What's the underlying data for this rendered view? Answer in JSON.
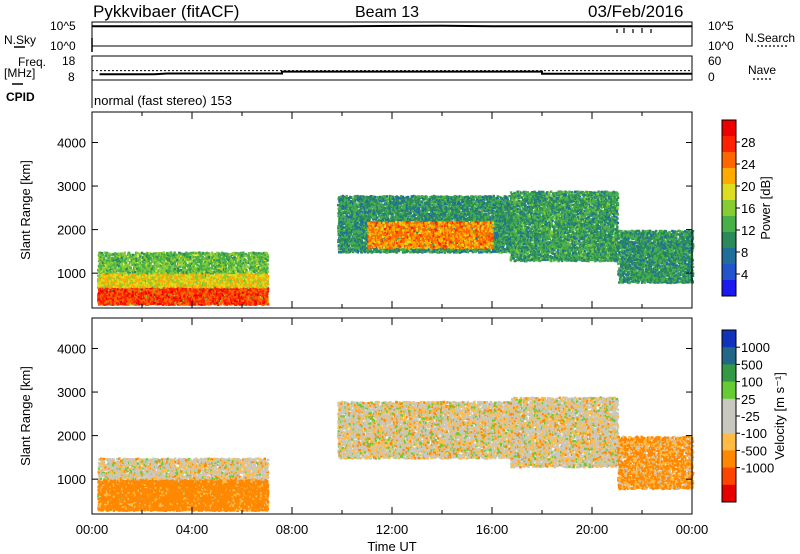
{
  "header": {
    "radar": "Pykkvibaer (fitACF)",
    "beam": "Beam 13",
    "date": "03/Feb/2016"
  },
  "params": {
    "nsky_label": "N.Sky",
    "nsearch_label": "N.Search",
    "noise_ticks": [
      "10^5",
      "10^0"
    ],
    "freq_label": "Freq.",
    "freq_unit": "[MHz]",
    "freq_ticks": [
      "18",
      "8"
    ],
    "nave_label": "Nave",
    "nave_ticks": [
      "60",
      "0"
    ],
    "cpid_label": "CPID",
    "cpid_text": "normal (fast stereo) 153"
  },
  "colors": {
    "power": [
      "#1a1aee",
      "#2255cc",
      "#1f6f9a",
      "#2b8a5a",
      "#48b048",
      "#88cc33",
      "#dddd22",
      "#ffaa00",
      "#ff6600",
      "#ff2200",
      "#ee0000"
    ],
    "velocity": [
      "#e60000",
      "#ff4400",
      "#ff8800",
      "#ffbb44",
      "#c8c8c0",
      "#c8c8c0",
      "#66cc33",
      "#339944",
      "#226688",
      "#1133bb"
    ],
    "gray": "#c8c8c0"
  },
  "chart_data": [
    {
      "type": "line",
      "name": "noise",
      "x_ticks": [
        "00:00",
        "04:00",
        "08:00",
        "12:00",
        "16:00",
        "20:00",
        "00:00"
      ],
      "series": [
        {
          "name": "N.Sky",
          "x": [
            0,
            1,
            2,
            6,
            10,
            14,
            16,
            20,
            22,
            24
          ],
          "y": [
            4.5,
            4.5,
            4.5,
            4.5,
            4.5,
            4.6,
            4.5,
            4.5,
            4.5,
            4.5
          ]
        },
        {
          "name": "N.Search",
          "x": [],
          "y": []
        }
      ],
      "y_ticks": [
        "10^0",
        "10^5"
      ]
    },
    {
      "type": "line",
      "name": "freq",
      "series": [
        {
          "name": "Freq.",
          "x": [
            0.3,
            2.5,
            3.0,
            7.6,
            7.6,
            18.0,
            18.0,
            24
          ],
          "y": [
            10.4,
            10.4,
            10.7,
            10.7,
            11.5,
            11.5,
            10.6,
            10.6
          ]
        },
        {
          "name": "Nave",
          "x": [],
          "y": []
        }
      ],
      "y_ticks": [
        "8",
        "18"
      ],
      "y2_ticks": [
        "0",
        "60"
      ]
    },
    {
      "type": "heatmap",
      "name": "power",
      "ylabel": "Slant Range [km]",
      "xlim": [
        0,
        24
      ],
      "ylim": [
        200,
        4700
      ],
      "y_ticks": [
        1000,
        2000,
        3000,
        4000
      ],
      "colorbar_label": "Power [dB]",
      "colorbar_ticks": [
        4,
        8,
        12,
        16,
        20,
        24,
        28
      ],
      "colorbar_range": [
        0,
        32
      ],
      "regions": [
        {
          "x": [
            0.2,
            7.0
          ],
          "y": [
            300,
            1500
          ],
          "v": 14
        },
        {
          "x": [
            0.2,
            7.0
          ],
          "y": [
            300,
            700
          ],
          "v": 28
        },
        {
          "x": [
            0.2,
            7.0
          ],
          "y": [
            700,
            1000
          ],
          "v": 20
        },
        {
          "x": [
            9.8,
            16.8
          ],
          "y": [
            1500,
            2800
          ],
          "v": 10
        },
        {
          "x": [
            11.0,
            16.0
          ],
          "y": [
            1600,
            2200
          ],
          "v": 24
        },
        {
          "x": [
            16.7,
            21.0
          ],
          "y": [
            1300,
            2900
          ],
          "v": 11
        },
        {
          "x": [
            21.0,
            24.0
          ],
          "y": [
            800,
            2000
          ],
          "v": 10
        }
      ]
    },
    {
      "type": "heatmap",
      "name": "velocity",
      "ylabel": "Slant Range [km]",
      "xlabel": "Time UT",
      "xlim": [
        0,
        24
      ],
      "ylim": [
        200,
        4700
      ],
      "y_ticks": [
        1000,
        2000,
        3000,
        4000
      ],
      "colorbar_label": "Velocity [m s⁻¹]",
      "colorbar_ticks": [
        "1000",
        "500",
        "100",
        "25",
        "-25",
        "-100",
        "-500",
        "-1000"
      ],
      "regions": [
        {
          "x": [
            0.2,
            7.0
          ],
          "y": [
            300,
            1500
          ],
          "v": 0
        },
        {
          "x": [
            0.2,
            7.0
          ],
          "y": [
            300,
            1000
          ],
          "v": -120
        },
        {
          "x": [
            9.8,
            16.8
          ],
          "y": [
            1500,
            2800
          ],
          "v": 0
        },
        {
          "x": [
            16.7,
            21.0
          ],
          "y": [
            1300,
            2900
          ],
          "v": 0
        },
        {
          "x": [
            21.0,
            24.0
          ],
          "y": [
            800,
            2000
          ],
          "v": -80
        }
      ]
    }
  ]
}
